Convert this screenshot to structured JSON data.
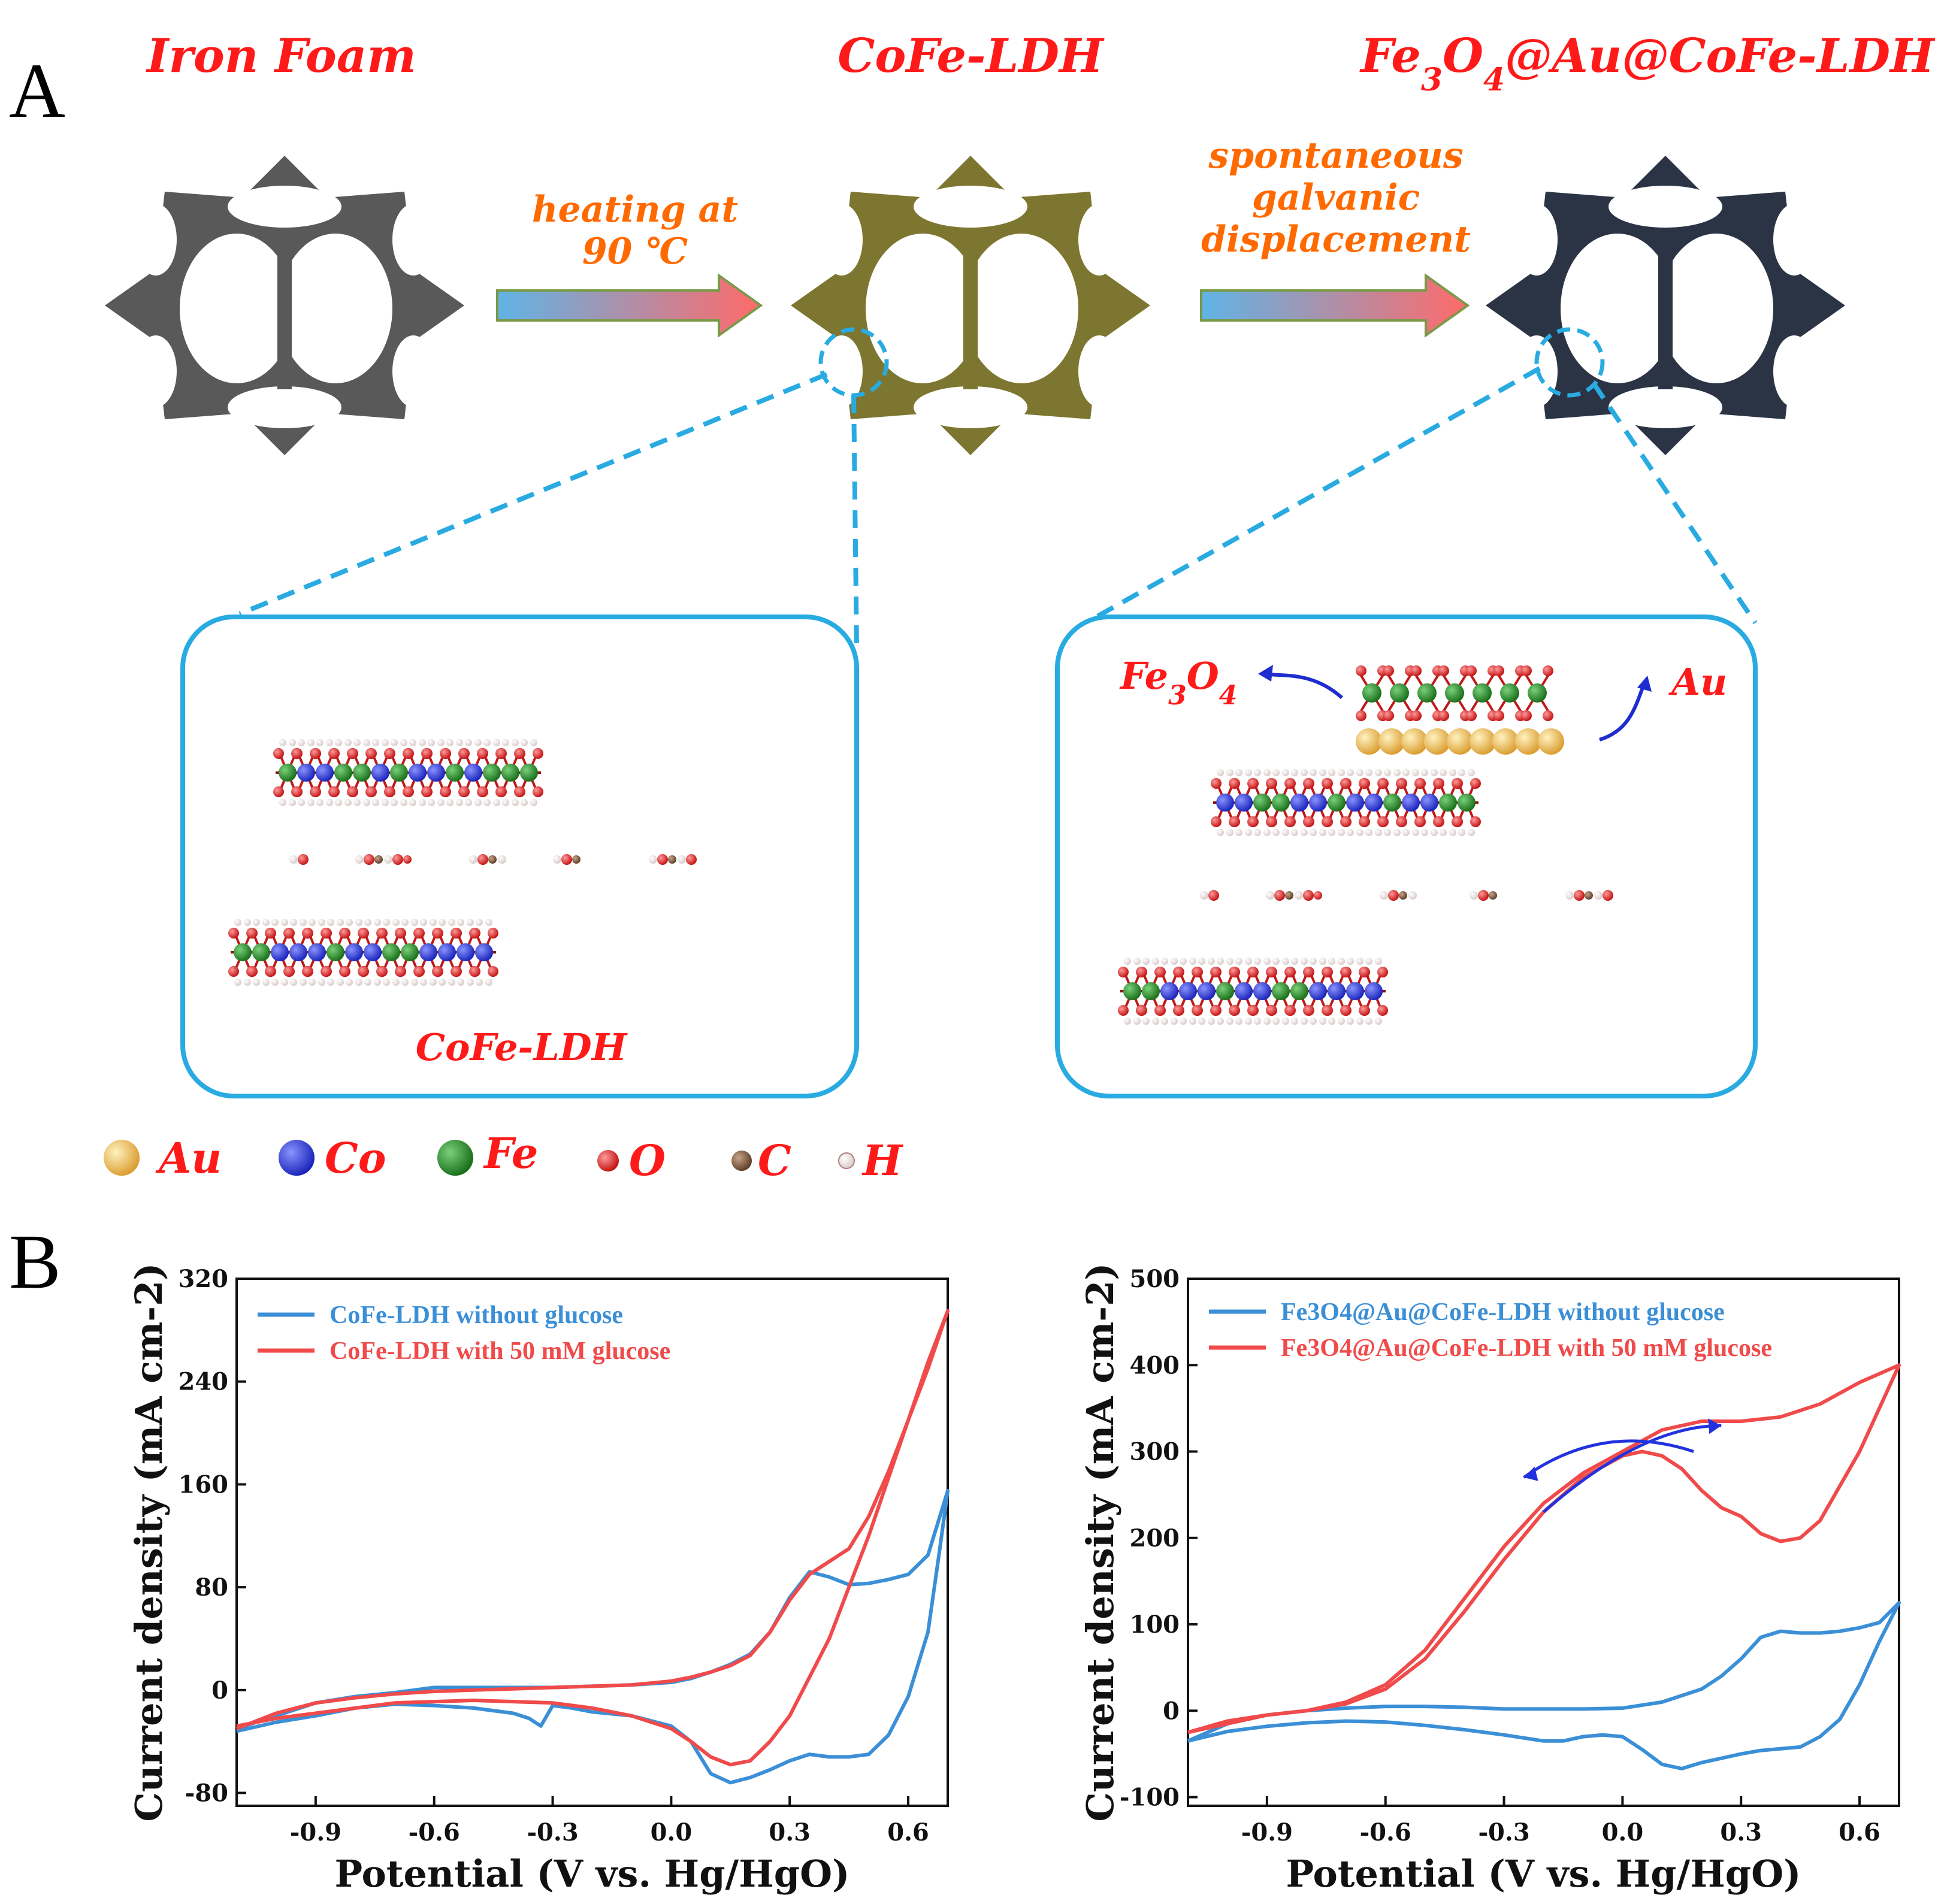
{
  "panel_a": {
    "letter": "A",
    "stages": [
      {
        "title": "Iron Foam",
        "color": "#595959"
      },
      {
        "title": "CoFe-LDH",
        "color": "#7d7630"
      },
      {
        "title": "Fe3O4@Au@CoFe-LDH",
        "color": "#2b3445"
      }
    ],
    "step1_lines": [
      "heating at",
      "90 ℃"
    ],
    "step2_lines": [
      "spontaneous",
      "galvanic",
      "displacement"
    ],
    "zoom_left_label": "CoFe-LDH",
    "zoom_right_labels": {
      "fe3o4": "Fe3O4",
      "au": "Au"
    },
    "atom_legend": [
      {
        "symbol": "Au",
        "color": "#e0a23a"
      },
      {
        "symbol": "Co",
        "color": "#1f2ccf"
      },
      {
        "symbol": "Fe",
        "color": "#1f7a1f"
      },
      {
        "symbol": "O",
        "color": "#d41414"
      },
      {
        "symbol": "C",
        "color": "#6b4a2e"
      },
      {
        "symbol": "H",
        "color": "#f2e6e6"
      }
    ]
  },
  "panel_b": {
    "letter": "B"
  },
  "chart_data": [
    {
      "type": "line",
      "title": "",
      "xlabel": "Potential (V vs. Hg/HgO)",
      "ylabel": "Current density (mA cm-2)",
      "xlim": [
        -1.1,
        0.7
      ],
      "ylim": [
        -90,
        320
      ],
      "xticks": [
        -0.9,
        -0.6,
        -0.3,
        0.0,
        0.3,
        0.6
      ],
      "yticks": [
        -80,
        0,
        80,
        160,
        240,
        320
      ],
      "xtick_labels": [
        "-0.9",
        "-0.6",
        "-0.3",
        "0.0",
        "0.3",
        "0.6"
      ],
      "ytick_labels": [
        "-80",
        "0",
        "80",
        "160",
        "240",
        "320"
      ],
      "series": [
        {
          "name": "CoFe-LDH without glucose",
          "color": "#3b8fd6",
          "x": [
            -1.1,
            -1.0,
            -0.9,
            -0.8,
            -0.7,
            -0.6,
            -0.5,
            -0.4,
            -0.3,
            -0.2,
            -0.1,
            0.0,
            0.05,
            0.1,
            0.15,
            0.2,
            0.25,
            0.3,
            0.35,
            0.4,
            0.45,
            0.5,
            0.55,
            0.6,
            0.65,
            0.7,
            0.68,
            0.65,
            0.6,
            0.55,
            0.5,
            0.45,
            0.4,
            0.35,
            0.3,
            0.25,
            0.2,
            0.15,
            0.1,
            0.05,
            0.0,
            -0.1,
            -0.2,
            -0.25,
            -0.3,
            -0.33,
            -0.36,
            -0.4,
            -0.5,
            -0.6,
            -0.7,
            -0.8,
            -0.9,
            -1.0,
            -1.1
          ],
          "y": [
            -30,
            -20,
            -10,
            -5,
            -2,
            2,
            2,
            2,
            2,
            3,
            4,
            6,
            9,
            14,
            20,
            28,
            45,
            72,
            92,
            88,
            82,
            83,
            86,
            90,
            105,
            155,
            110,
            45,
            -5,
            -35,
            -50,
            -52,
            -52,
            -50,
            -55,
            -62,
            -68,
            -72,
            -65,
            -40,
            -28,
            -20,
            -17,
            -14,
            -12,
            -28,
            -22,
            -18,
            -14,
            -12,
            -11,
            -14,
            -20,
            -25,
            -32
          ]
        },
        {
          "name": "CoFe-LDH with 50 mM glucose",
          "color": "#f04a4a",
          "x": [
            -1.1,
            -1.0,
            -0.9,
            -0.8,
            -0.7,
            -0.6,
            -0.5,
            -0.4,
            -0.3,
            -0.2,
            -0.1,
            0.0,
            0.05,
            0.1,
            0.15,
            0.2,
            0.25,
            0.3,
            0.35,
            0.4,
            0.45,
            0.5,
            0.55,
            0.6,
            0.65,
            0.7,
            0.65,
            0.6,
            0.55,
            0.5,
            0.45,
            0.4,
            0.35,
            0.3,
            0.25,
            0.2,
            0.15,
            0.1,
            0.05,
            0.0,
            -0.1,
            -0.2,
            -0.3,
            -0.4,
            -0.5,
            -0.6,
            -0.7,
            -0.8,
            -0.9,
            -1.0,
            -1.1
          ],
          "y": [
            -30,
            -18,
            -10,
            -6,
            -3,
            -1,
            0,
            1,
            2,
            3,
            4,
            7,
            10,
            14,
            19,
            27,
            45,
            70,
            90,
            100,
            110,
            135,
            170,
            210,
            250,
            295,
            255,
            210,
            165,
            120,
            80,
            40,
            10,
            -20,
            -40,
            -55,
            -58,
            -52,
            -40,
            -30,
            -20,
            -14,
            -10,
            -9,
            -8,
            -9,
            -10,
            -14,
            -18,
            -22,
            -28
          ]
        }
      ]
    },
    {
      "type": "line",
      "title": "",
      "xlabel": "Potential (V vs. Hg/HgO)",
      "ylabel": "Current density (mA cm-2)",
      "xlim": [
        -1.1,
        0.7
      ],
      "ylim": [
        -110,
        500
      ],
      "xticks": [
        -0.9,
        -0.6,
        -0.3,
        0.0,
        0.3,
        0.6
      ],
      "yticks": [
        -100,
        0,
        100,
        200,
        300,
        400,
        500
      ],
      "xtick_labels": [
        "-0.9",
        "-0.6",
        "-0.3",
        "0.0",
        "0.3",
        "0.6"
      ],
      "ytick_labels": [
        "-100",
        "0",
        "100",
        "200",
        "300",
        "400",
        "500"
      ],
      "series": [
        {
          "name": "Fe3O4@Au@CoFe-LDH without glucose",
          "color": "#3b8fd6",
          "x": [
            -1.1,
            -1.0,
            -0.9,
            -0.8,
            -0.7,
            -0.6,
            -0.5,
            -0.4,
            -0.3,
            -0.2,
            -0.1,
            0.0,
            0.1,
            0.2,
            0.25,
            0.3,
            0.35,
            0.4,
            0.45,
            0.5,
            0.55,
            0.6,
            0.65,
            0.7,
            0.65,
            0.6,
            0.55,
            0.5,
            0.45,
            0.4,
            0.35,
            0.3,
            0.25,
            0.2,
            0.15,
            0.1,
            0.05,
            0.0,
            -0.05,
            -0.1,
            -0.15,
            -0.2,
            -0.3,
            -0.4,
            -0.5,
            -0.6,
            -0.7,
            -0.8,
            -0.9,
            -1.0,
            -1.1
          ],
          "y": [
            -35,
            -15,
            -5,
            0,
            3,
            5,
            5,
            4,
            2,
            2,
            2,
            3,
            10,
            25,
            40,
            60,
            85,
            92,
            90,
            90,
            92,
            96,
            102,
            125,
            80,
            30,
            -10,
            -30,
            -42,
            -44,
            -46,
            -50,
            -55,
            -60,
            -67,
            -62,
            -45,
            -30,
            -28,
            -30,
            -35,
            -35,
            -28,
            -22,
            -17,
            -13,
            -12,
            -14,
            -18,
            -24,
            -35
          ]
        },
        {
          "name": "Fe3O4@Au@CoFe-LDH with 50 mM glucose",
          "color": "#f04a4a",
          "x": [
            -1.1,
            -1.0,
            -0.9,
            -0.8,
            -0.7,
            -0.6,
            -0.5,
            -0.4,
            -0.3,
            -0.2,
            -0.1,
            0.0,
            0.1,
            0.2,
            0.3,
            0.4,
            0.5,
            0.6,
            0.7,
            0.6,
            0.5,
            0.45,
            0.4,
            0.35,
            0.3,
            0.25,
            0.2,
            0.15,
            0.1,
            0.05,
            0.0,
            -0.1,
            -0.2,
            -0.3,
            -0.4,
            -0.5,
            -0.6,
            -0.7,
            -0.8,
            -0.9,
            -1.0,
            -1.1
          ],
          "y": [
            -25,
            -15,
            -5,
            0,
            10,
            30,
            70,
            130,
            190,
            240,
            275,
            300,
            325,
            335,
            335,
            340,
            355,
            380,
            400,
            300,
            220,
            200,
            196,
            205,
            225,
            235,
            255,
            280,
            295,
            300,
            295,
            270,
            230,
            175,
            115,
            60,
            25,
            8,
            0,
            -5,
            -12,
            -25
          ]
        }
      ]
    }
  ]
}
